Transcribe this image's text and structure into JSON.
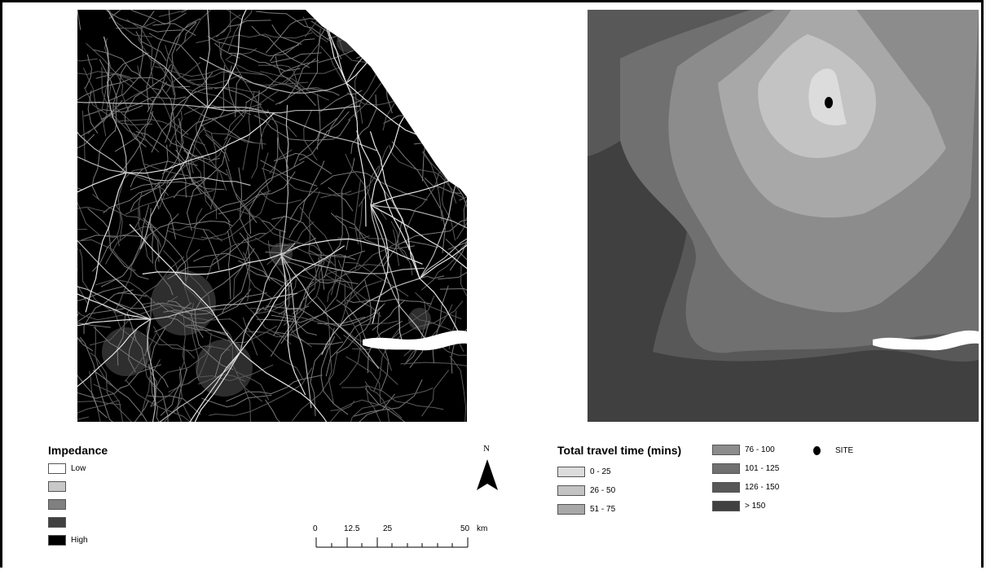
{
  "impedance_legend": {
    "title": "Impedance",
    "items": [
      {
        "label": "Low",
        "color": "#ffffff"
      },
      {
        "label": "",
        "color": "#c8c8c8"
      },
      {
        "label": "",
        "color": "#808080"
      },
      {
        "label": "",
        "color": "#404040"
      },
      {
        "label": "High",
        "color": "#000000"
      }
    ]
  },
  "north_arrow": {
    "label": "N"
  },
  "scale_bar": {
    "ticks": [
      "0",
      "12.5",
      "25",
      "50"
    ],
    "unit": "km"
  },
  "travel_time_legend": {
    "title": "Total travel time (mins)",
    "items": [
      {
        "label": "0 - 25",
        "color": "#dcdcdc"
      },
      {
        "label": "26 - 50",
        "color": "#c3c3c3"
      },
      {
        "label": "51 - 75",
        "color": "#a8a8a8"
      },
      {
        "label": "76 - 100",
        "color": "#8c8c8c"
      },
      {
        "label": "101 - 125",
        "color": "#707070"
      },
      {
        "label": "126 - 150",
        "color": "#585858"
      },
      {
        "label": "> 150",
        "color": "#404040"
      }
    ]
  },
  "site_legend": {
    "label": "SITE"
  }
}
